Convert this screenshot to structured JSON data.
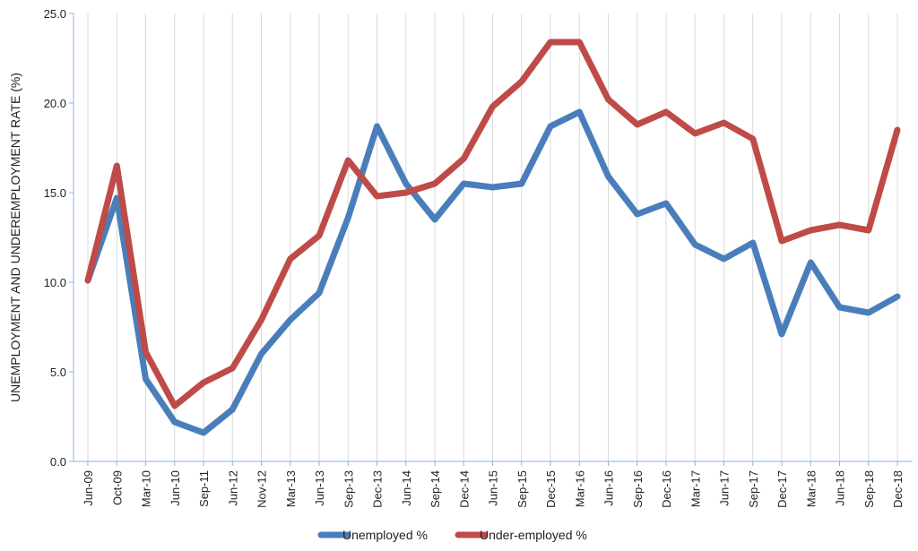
{
  "chart_data": {
    "type": "line",
    "title": "",
    "xlabel": "",
    "ylabel": "UNEMPLOYMENT AND UNDEREMPLOYMENT RATE (%)",
    "ylim": [
      0,
      25
    ],
    "yticks": [
      "0.0",
      "5.0",
      "10.0",
      "15.0",
      "20.0",
      "25.0"
    ],
    "grid": "vertical",
    "legend_position": "bottom",
    "categories": [
      "Jun-09",
      "Oct-09",
      "Mar-10",
      "Jun-10",
      "Sep-11",
      "Jun-12",
      "Nov-12",
      "Mar-13",
      "Jun-13",
      "Sep-13",
      "Dec-13",
      "Jun-14",
      "Sep-14",
      "Dec-14",
      "Jun-15",
      "Sep-15",
      "Dec-15",
      "Mar-16",
      "Jun-16",
      "Sep-16",
      "Dec-16",
      "Mar-17",
      "Jun-17",
      "Sep-17",
      "Dec-17",
      "Mar-18",
      "Jun-18",
      "Sep-18",
      "Dec-18"
    ],
    "series": [
      {
        "name": "Unemployed %",
        "color": "#4a7ebb",
        "values": [
          10.1,
          14.7,
          4.6,
          2.2,
          1.6,
          2.9,
          6.0,
          7.9,
          9.4,
          13.6,
          18.7,
          15.5,
          13.5,
          15.5,
          15.3,
          15.5,
          18.7,
          19.5,
          15.9,
          13.8,
          14.4,
          12.1,
          11.3,
          12.2,
          7.1,
          11.1,
          8.6,
          8.3,
          9.2
        ]
      },
      {
        "name": "Under-employed %",
        "color": "#be4b48",
        "values": [
          10.1,
          16.5,
          6.1,
          3.1,
          4.4,
          5.2,
          7.9,
          11.3,
          12.6,
          16.8,
          14.8,
          15.0,
          15.5,
          16.9,
          19.8,
          21.2,
          23.4,
          23.4,
          20.2,
          18.8,
          19.5,
          18.3,
          18.9,
          18.0,
          12.3,
          12.9,
          13.2,
          12.9,
          18.5
        ]
      }
    ]
  }
}
